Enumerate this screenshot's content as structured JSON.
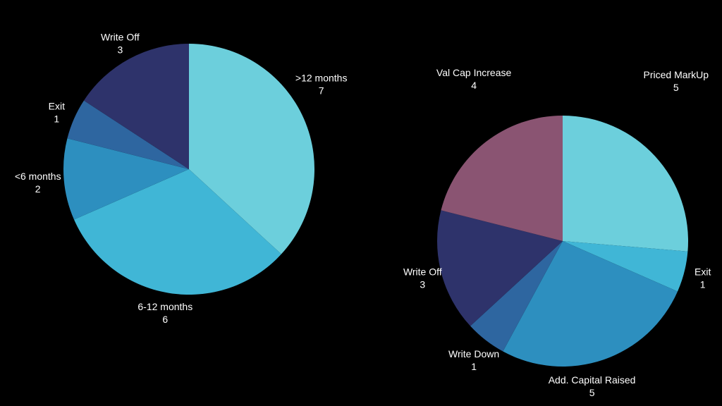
{
  "chart_data": [
    {
      "type": "pie",
      "title": "",
      "slices": [
        {
          "label": ">12 months",
          "value": 7,
          "color": "#6ccfdc"
        },
        {
          "label": "6-12 months",
          "value": 6,
          "color": "#40b6d6"
        },
        {
          "label": "<6 months",
          "value": 2,
          "color": "#2d8fbf"
        },
        {
          "label": "Exit",
          "value": 1,
          "color": "#2e66a0"
        },
        {
          "label": "Write Off",
          "value": 3,
          "color": "#2e336b"
        }
      ]
    },
    {
      "type": "pie",
      "title": "",
      "slices": [
        {
          "label": "Priced MarkUp",
          "value": 5,
          "color": "#6ccfdc"
        },
        {
          "label": "Exit",
          "value": 1,
          "color": "#40b6d6"
        },
        {
          "label": "Add. Capital Raised",
          "value": 5,
          "color": "#2d8fbf"
        },
        {
          "label": "Write Down",
          "value": 1,
          "color": "#2e66a0"
        },
        {
          "label": "Write Off",
          "value": 3,
          "color": "#2e336b"
        },
        {
          "label": "Val Cap Increase",
          "value": 4,
          "color": "#8a5472"
        }
      ]
    }
  ]
}
